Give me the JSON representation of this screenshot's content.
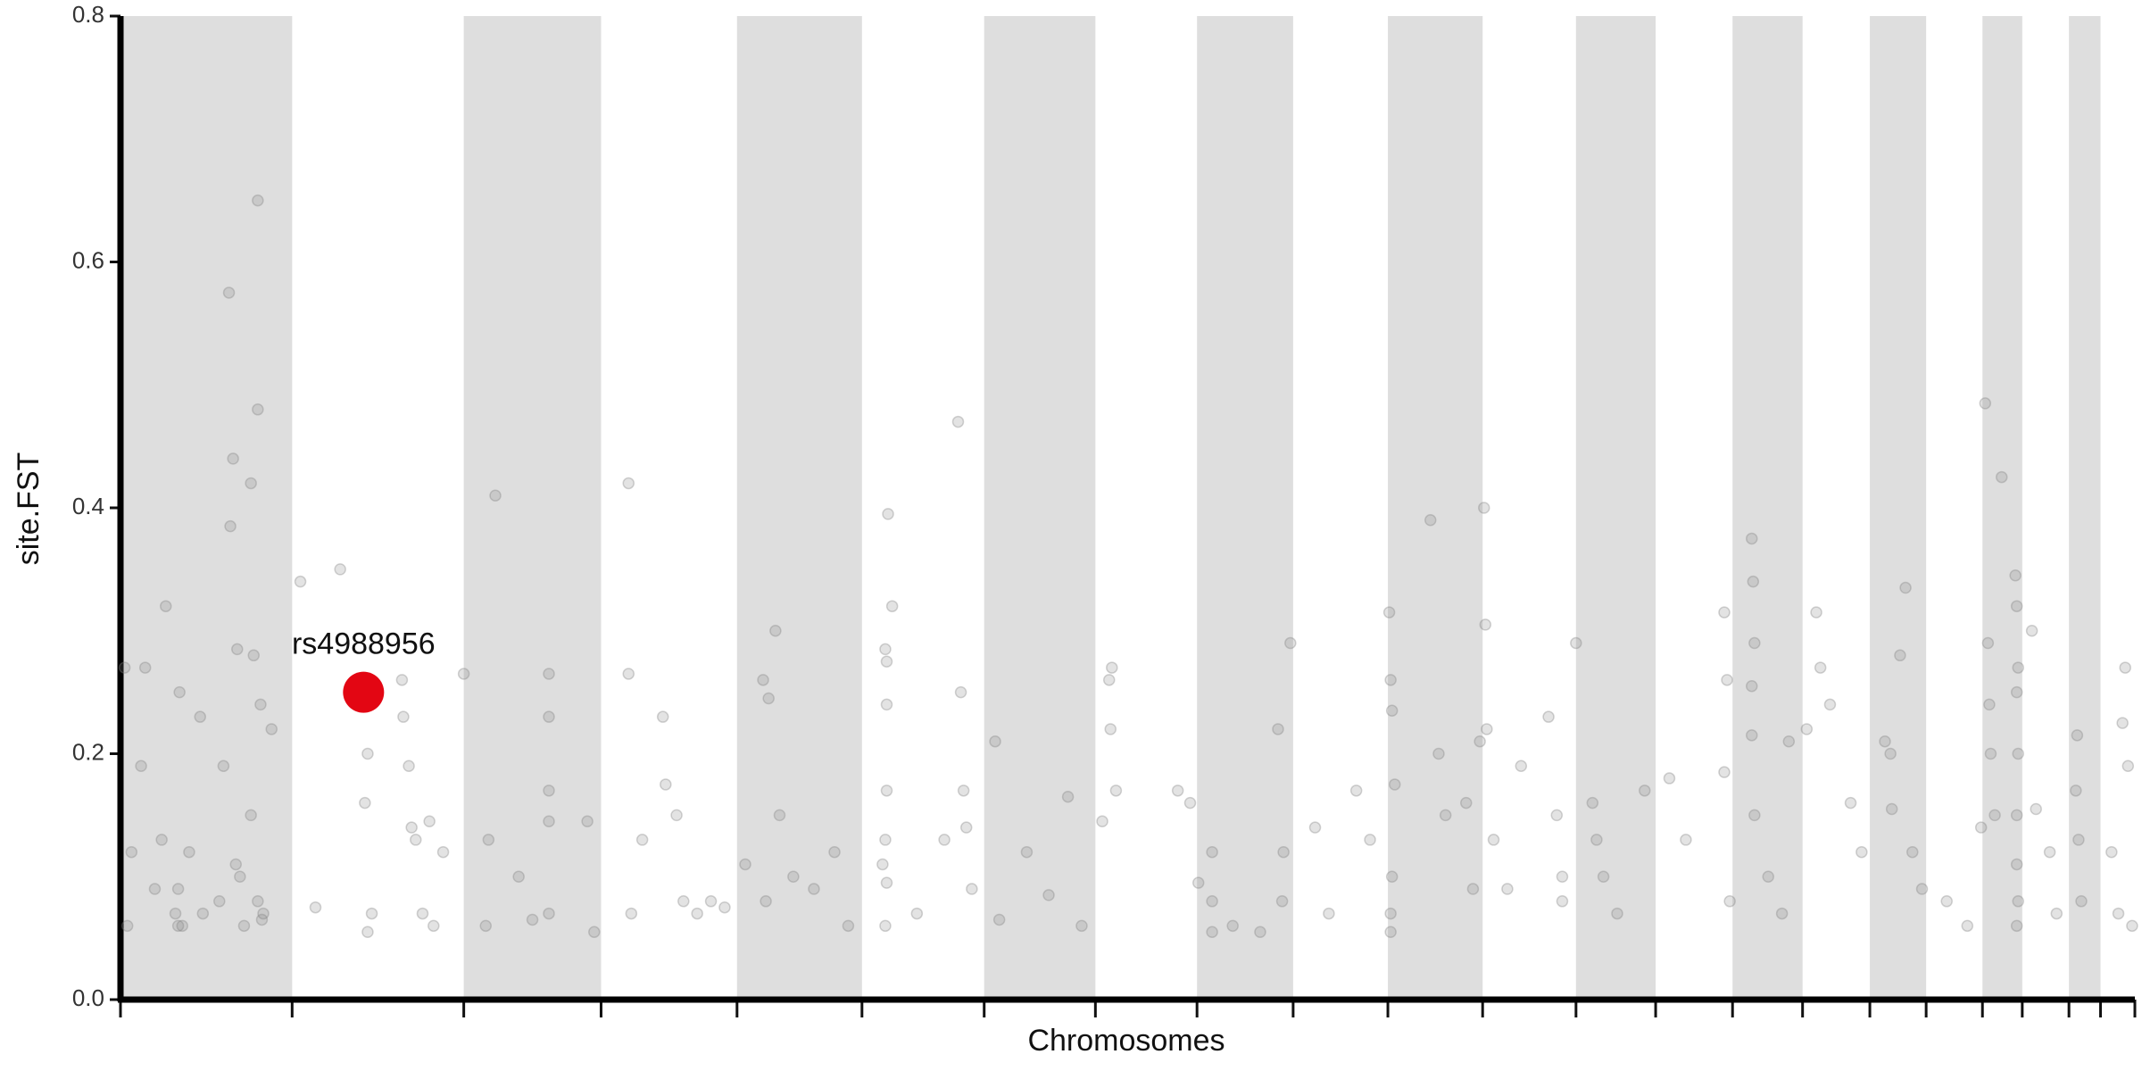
{
  "chart_data": {
    "type": "scatter",
    "y_label": "site.FST",
    "x_label": "Chromosomes",
    "xlim": [
      0,
      1467
    ],
    "ylim": [
      0,
      0.8
    ],
    "yticks": [
      {
        "value": 0,
        "label": "0.0"
      },
      0.2,
      0.4,
      0.6,
      0.8
    ],
    "chromosome_bounds": [
      0,
      125,
      250,
      350,
      449,
      540,
      629,
      710,
      784,
      854,
      923,
      992,
      1060,
      1118,
      1174,
      1225,
      1274,
      1315,
      1356,
      1385,
      1419,
      1442,
      1467
    ],
    "band_color": "#dedede",
    "color": "#808080",
    "x": [
      3,
      8,
      5,
      15,
      18,
      25,
      30,
      33,
      40,
      43,
      45,
      50,
      58,
      75,
      79,
      82,
      84,
      85,
      90,
      95,
      97,
      100,
      100,
      102,
      104,
      110,
      80,
      87,
      95,
      100,
      103,
      42,
      42,
      60,
      72,
      131,
      142,
      160,
      180,
      178,
      183,
      180,
      205,
      206,
      210,
      212,
      215,
      220,
      225,
      235,
      228,
      250,
      268,
      273,
      266,
      290,
      312,
      312,
      312,
      312,
      312,
      300,
      340,
      345,
      370,
      370,
      372,
      380,
      395,
      397,
      405,
      410,
      420,
      430,
      440,
      455,
      468,
      472,
      477,
      470,
      480,
      490,
      505,
      520,
      530,
      555,
      557,
      558,
      558,
      559,
      562,
      558,
      557,
      558,
      557,
      580,
      600,
      610,
      612,
      614,
      616,
      620,
      637,
      640,
      660,
      676,
      690,
      700,
      715,
      720,
      722,
      721,
      725,
      770,
      779,
      785,
      795,
      795,
      795,
      810,
      843,
      847,
      846,
      852,
      830,
      870,
      900,
      910,
      880,
      924,
      925,
      926,
      928,
      926,
      925,
      925,
      954,
      960,
      965,
      980,
      985,
      993,
      994,
      995,
      990,
      1000,
      1010,
      1020,
      1040,
      1046,
      1050,
      1050,
      1060,
      1072,
      1075,
      1080,
      1090,
      1110,
      1128,
      1140,
      1168,
      1170,
      1168,
      1172,
      1188,
      1189,
      1190,
      1188,
      1188,
      1190,
      1200,
      1210,
      1215,
      1228,
      1235,
      1238,
      1245,
      1260,
      1268,
      1285,
      1289,
      1290,
      1300,
      1296,
      1305,
      1312,
      1330,
      1345,
      1355,
      1358,
      1360,
      1361,
      1362,
      1365,
      1370,
      1380,
      1381,
      1382,
      1381,
      1382,
      1381,
      1381,
      1382,
      1381,
      1392,
      1395,
      1405,
      1410,
      1425,
      1424,
      1426,
      1428,
      1450,
      1460,
      1458,
      1462,
      1455,
      1465
    ],
    "values": [
      0.27,
      0.12,
      0.06,
      0.19,
      0.27,
      0.09,
      0.13,
      0.32,
      0.07,
      0.25,
      0.06,
      0.12,
      0.23,
      0.19,
      0.575,
      0.44,
      0.11,
      0.285,
      0.06,
      0.42,
      0.28,
      0.65,
      0.48,
      0.24,
      0.07,
      0.22,
      0.385,
      0.1,
      0.15,
      0.08,
      0.065,
      0.09,
      0.06,
      0.07,
      0.08,
      0.34,
      0.075,
      0.35,
      0.2,
      0.16,
      0.07,
      0.055,
      0.26,
      0.23,
      0.19,
      0.14,
      0.13,
      0.07,
      0.145,
      0.12,
      0.06,
      0.265,
      0.13,
      0.41,
      0.06,
      0.1,
      0.265,
      0.23,
      0.17,
      0.145,
      0.07,
      0.065,
      0.145,
      0.055,
      0.42,
      0.265,
      0.07,
      0.13,
      0.23,
      0.175,
      0.15,
      0.08,
      0.07,
      0.08,
      0.075,
      0.11,
      0.26,
      0.245,
      0.3,
      0.08,
      0.15,
      0.1,
      0.09,
      0.12,
      0.06,
      0.11,
      0.285,
      0.275,
      0.24,
      0.395,
      0.32,
      0.17,
      0.13,
      0.095,
      0.06,
      0.07,
      0.13,
      0.47,
      0.25,
      0.17,
      0.14,
      0.09,
      0.21,
      0.065,
      0.12,
      0.085,
      0.165,
      0.06,
      0.145,
      0.26,
      0.27,
      0.22,
      0.17,
      0.17,
      0.16,
      0.095,
      0.12,
      0.08,
      0.055,
      0.06,
      0.22,
      0.12,
      0.08,
      0.29,
      0.055,
      0.14,
      0.17,
      0.13,
      0.07,
      0.315,
      0.26,
      0.235,
      0.175,
      0.1,
      0.07,
      0.055,
      0.39,
      0.2,
      0.15,
      0.16,
      0.09,
      0.4,
      0.305,
      0.22,
      0.21,
      0.13,
      0.09,
      0.19,
      0.23,
      0.15,
      0.1,
      0.08,
      0.29,
      0.16,
      0.13,
      0.1,
      0.07,
      0.17,
      0.18,
      0.13,
      0.315,
      0.26,
      0.185,
      0.08,
      0.375,
      0.34,
      0.29,
      0.255,
      0.215,
      0.15,
      0.1,
      0.07,
      0.21,
      0.22,
      0.315,
      0.27,
      0.24,
      0.16,
      0.12,
      0.21,
      0.2,
      0.155,
      0.335,
      0.28,
      0.12,
      0.09,
      0.08,
      0.06,
      0.14,
      0.485,
      0.29,
      0.24,
      0.2,
      0.15,
      0.425,
      0.345,
      0.32,
      0.27,
      0.25,
      0.2,
      0.15,
      0.11,
      0.08,
      0.06,
      0.3,
      0.155,
      0.12,
      0.07,
      0.215,
      0.17,
      0.13,
      0.08,
      0.12,
      0.27,
      0.225,
      0.19,
      0.07,
      0.06
    ],
    "highlight": {
      "label": "rs4988956",
      "x": 177,
      "y": 0.25,
      "color": "#e30613"
    }
  }
}
